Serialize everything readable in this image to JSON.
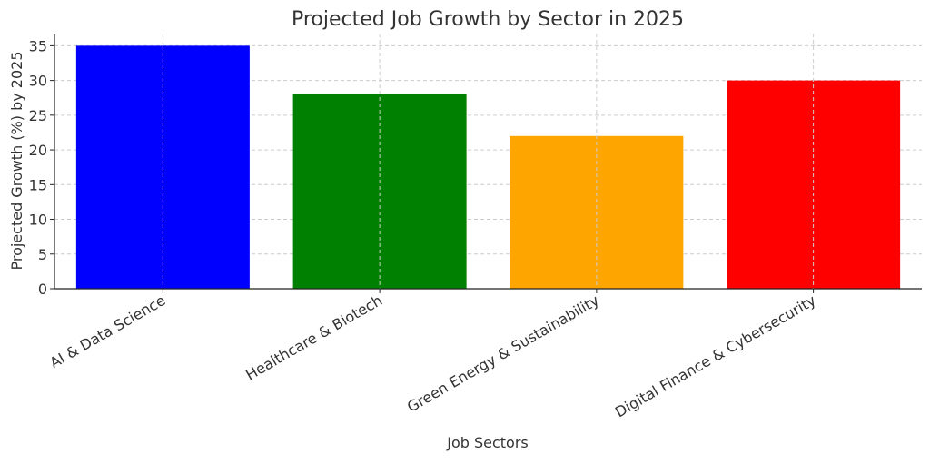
{
  "chart_data": {
    "type": "bar",
    "title": "Projected Job Growth by Sector in 2025",
    "xlabel": "Job Sectors",
    "ylabel": "Projected Growth (%) by 2025",
    "categories": [
      "AI & Data Science",
      "Healthcare & Biotech",
      "Green Energy & Sustainability",
      "Digital Finance & Cybersecurity"
    ],
    "values": [
      35,
      28,
      22,
      30
    ],
    "colors": [
      "#0000ff",
      "#008000",
      "#ffa500",
      "#ff0000"
    ],
    "ylim": [
      0,
      36.75
    ],
    "yticks": [
      0,
      5,
      10,
      15,
      20,
      25,
      30,
      35
    ],
    "grid": true,
    "legend": "none"
  }
}
